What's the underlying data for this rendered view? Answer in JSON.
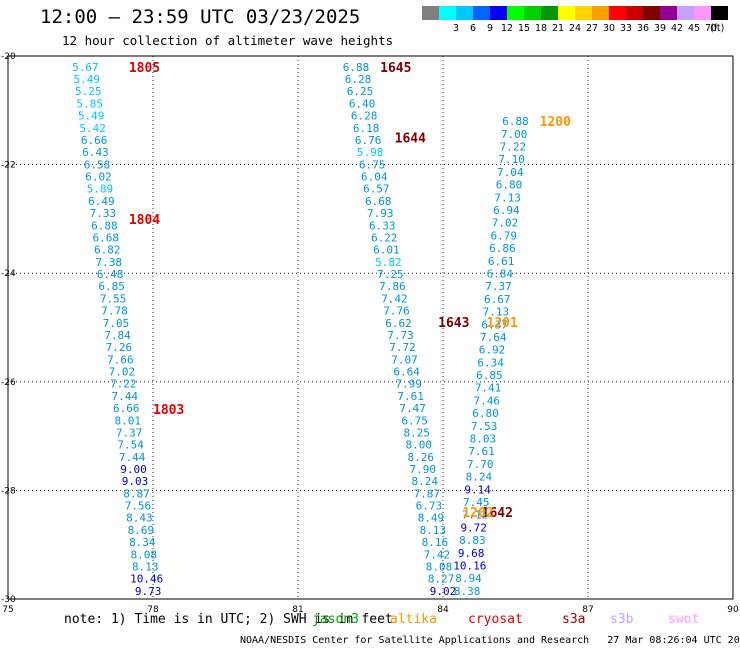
{
  "header": {
    "title": "12:00 – 23:59 UTC 03/23/2025",
    "subtitle": "12 hour collection of altimeter wave heights"
  },
  "legend": {
    "unit": "(ft)",
    "entries": [
      {
        "label": "",
        "color": "#808080"
      },
      {
        "label": "3",
        "color": "#00ffff"
      },
      {
        "label": "6",
        "color": "#00c8ff"
      },
      {
        "label": "9",
        "color": "#0064ff"
      },
      {
        "label": "12",
        "color": "#0000ff"
      },
      {
        "label": "15",
        "color": "#00ff00"
      },
      {
        "label": "18",
        "color": "#00d000"
      },
      {
        "label": "21",
        "color": "#009600"
      },
      {
        "label": "24",
        "color": "#ffff00"
      },
      {
        "label": "27",
        "color": "#ffd400"
      },
      {
        "label": "30",
        "color": "#ffa000"
      },
      {
        "label": "33",
        "color": "#ff0000"
      },
      {
        "label": "36",
        "color": "#c80000"
      },
      {
        "label": "39",
        "color": "#800000"
      },
      {
        "label": "42",
        "color": "#960096"
      },
      {
        "label": "45",
        "color": "#c8a0ff"
      },
      {
        "label": "70",
        "color": "#ff96ff"
      },
      {
        "label": "",
        "color": "#000000"
      }
    ]
  },
  "axes": {
    "lon_range": [
      75,
      90
    ],
    "lat_range": [
      -30,
      -20
    ],
    "x_ticks": [
      "75",
      "78",
      "81",
      "84",
      "87",
      "90"
    ],
    "y_ticks": [
      "-30",
      "-28",
      "-26",
      "-24",
      "-22",
      "-20"
    ],
    "grid": true
  },
  "colors": {
    "wave_light": "#00c8ff",
    "wave_mid": "#0096d2",
    "wave_dark": "#0000c8",
    "label_red": "#e00000",
    "label_darkred": "#780000",
    "label_orange": "#ff9600"
  },
  "chart_data": {
    "type": "scatter",
    "x_unit": "degrees longitude",
    "y_unit": "degrees latitude",
    "tracks": [
      {
        "pass_labels": [
          {
            "text": "1805",
            "lon": 77.5,
            "lat": -20.2,
            "color": "label_red"
          },
          {
            "text": "1804",
            "lon": 77.5,
            "lat": -23.0,
            "color": "label_red"
          },
          {
            "text": "1803",
            "lon": 78.0,
            "lat": -26.5,
            "color": "label_red"
          }
        ],
        "lon_start": 76.6,
        "lon_end": 77.9,
        "lat_start": -20.2,
        "lat_end": -29.85,
        "values": [
          "5.67",
          "5.49",
          "5.25",
          "5.85",
          "5.49",
          "5.42",
          "6.66",
          "6.43",
          "6.58",
          "6.02",
          "5.89",
          "6.49",
          "7.33",
          "6.88",
          "6.68",
          "6.82",
          "7.38",
          "6.48",
          "6.85",
          "7.55",
          "7.78",
          "7.05",
          "7.84",
          "7.26",
          "7.66",
          "7.02",
          "7.22",
          "7.44",
          "6.66",
          "8.01",
          "7.37",
          "7.54",
          "7.44",
          "9.00",
          "9.03",
          "8.87",
          "7.56",
          "8.43",
          "8.69",
          "8.34",
          "8.08",
          "8.13",
          "10.46",
          "9.73"
        ]
      },
      {
        "pass_labels": [
          {
            "text": "1645",
            "lon": 82.7,
            "lat": -20.2,
            "color": "label_darkred"
          },
          {
            "text": "1644",
            "lon": 83.0,
            "lat": -21.5,
            "color": "label_darkred"
          },
          {
            "text": "1643",
            "lon": 83.9,
            "lat": -24.9,
            "color": "label_darkred"
          },
          {
            "text": "1642",
            "lon": 84.8,
            "lat": -28.4,
            "color": "label_darkred"
          }
        ],
        "lon_start": 82.2,
        "lon_end": 84.0,
        "lat_start": -20.2,
        "lat_end": -29.85,
        "values": [
          "6.88",
          "6.28",
          "6.25",
          "6.40",
          "6.28",
          "6.18",
          "6.76",
          "5.98",
          "6.75",
          "6.04",
          "6.57",
          "6.68",
          "7.93",
          "6.33",
          "6.22",
          "6.01",
          "5.82",
          "7.25",
          "7.86",
          "7.42",
          "7.76",
          "6.62",
          "7.73",
          "7.72",
          "7.07",
          "6.64",
          "7.99",
          "7.61",
          "7.47",
          "6.75",
          "8.25",
          "8.00",
          "8.26",
          "7.90",
          "8.24",
          "7.87",
          "6.73",
          "8.49",
          "8.13",
          "8.16",
          "7.42",
          "8.08",
          "8.27",
          "9.02"
        ]
      },
      {
        "pass_labels": [
          {
            "text": "1200",
            "lon": 86.0,
            "lat": -21.2,
            "color": "label_orange"
          },
          {
            "text": "1201",
            "lon": 84.9,
            "lat": -24.9,
            "color": "label_orange"
          },
          {
            "text": "1202",
            "lon": 84.4,
            "lat": -28.4,
            "color": "label_orange"
          }
        ],
        "lon_start": 85.5,
        "lon_end": 84.5,
        "lat_start": -21.2,
        "lat_end": -29.85,
        "values": [
          "6.88",
          "7.00",
          "7.22",
          "7.10",
          "7.04",
          "6.80",
          "7.13",
          "6.94",
          "7.02",
          "6.79",
          "6.86",
          "6.61",
          "6.84",
          "7.37",
          "6.67",
          "7.13",
          "6.37",
          "7.64",
          "6.92",
          "6.34",
          "6.85",
          "7.41",
          "7.46",
          "6.80",
          "7.53",
          "8.03",
          "7.61",
          "7.70",
          "8.24",
          "9.14",
          "7.45",
          "7.12",
          "9.72",
          "8.83",
          "9.68",
          "10.16",
          "8.94",
          "8.38"
        ]
      }
    ]
  },
  "footer": {
    "note": "note: 1) Time is in UTC; 2) SWH is in feet",
    "satellites": [
      {
        "name": "jason3",
        "color": "#00a000"
      },
      {
        "name": "altika",
        "color": "#ff9600"
      },
      {
        "name": "cryosat",
        "color": "#e00000"
      },
      {
        "name": "s3a",
        "color": "#960000"
      },
      {
        "name": "s3b",
        "color": "#c8a0ff"
      },
      {
        "name": "swot",
        "color": "#ff96ff"
      }
    ],
    "credit": "NOAA/NESDIS Center for Satellite Applications and Research",
    "generated": "27 Mar 08:26:04 UTC 2025"
  }
}
